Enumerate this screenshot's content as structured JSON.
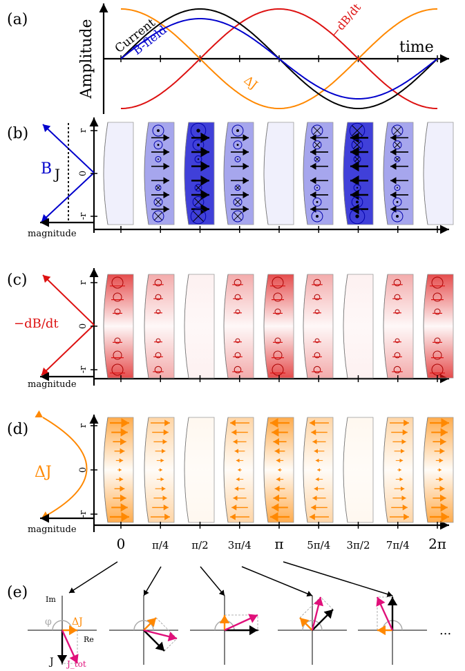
{
  "panel_labels": [
    "(a)",
    "(b)",
    "(c)",
    "(d)",
    "(e)"
  ],
  "panel_a": {
    "ylabel": "Amplitude",
    "xlabel": "time",
    "labels": {
      "current": "Current",
      "bfield": "B-field",
      "dbdt": "−dB/dt",
      "deltaj": "ΔJ"
    }
  },
  "panel_b": {
    "field_label": "B",
    "current_label": "J",
    "axis_label": "magnitude"
  },
  "panel_c": {
    "field_label": "−dB/dt",
    "axis_label": "magnitude"
  },
  "panel_d": {
    "field_label": "ΔJ",
    "axis_label": "magnitude"
  },
  "radial_ticks": [
    "r",
    "0",
    "-r"
  ],
  "phase_ticks": [
    "0",
    "π/4",
    "π/2",
    "3π/4",
    "π",
    "5π/4",
    "3π/2",
    "7π/4",
    "2π"
  ],
  "panel_e": {
    "im": "Im",
    "re": "Re",
    "phi": "φ",
    "deltaj": "ΔJ",
    "j": "J",
    "jtot": "J_tot",
    "ellipsis": "..."
  },
  "colors": {
    "current": "#000000",
    "bfield": "#0000cc",
    "dbdt": "#dd1111",
    "deltaj": "#ff8800",
    "jtot": "#e0107a"
  }
}
